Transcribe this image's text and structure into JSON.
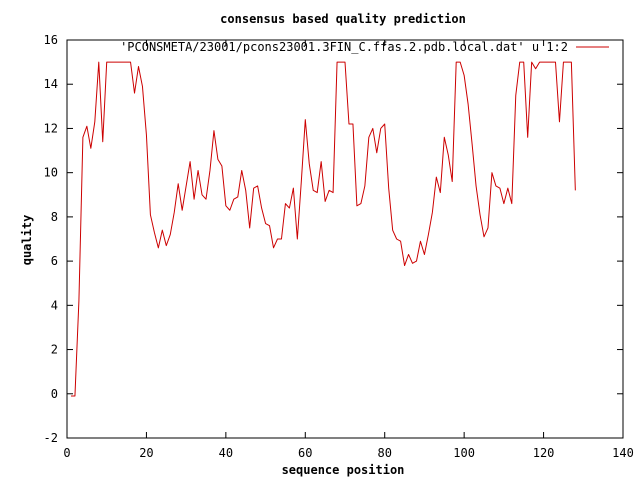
{
  "chart_data": {
    "type": "line",
    "title": "consensus based quality prediction",
    "xlabel": "sequence position",
    "ylabel": "quality",
    "xlim": [
      0,
      140
    ],
    "ylim": [
      -2,
      16
    ],
    "xticks": [
      0,
      20,
      40,
      60,
      80,
      100,
      120,
      140
    ],
    "yticks": [
      -2,
      0,
      2,
      4,
      6,
      8,
      10,
      12,
      14,
      16
    ],
    "grid": false,
    "legend": "top-right",
    "series": [
      {
        "name": "'PCONSMETA/23001/pcons23001.3FIN_C.ffas.2.pdb.local.dat' u 1:2",
        "color": "#cc0000",
        "x": [
          1,
          2,
          3,
          4,
          5,
          6,
          7,
          8,
          9,
          10,
          11,
          12,
          13,
          14,
          15,
          16,
          17,
          18,
          19,
          20,
          21,
          22,
          23,
          24,
          25,
          26,
          27,
          28,
          29,
          30,
          31,
          32,
          33,
          34,
          35,
          36,
          37,
          38,
          39,
          40,
          41,
          42,
          43,
          44,
          45,
          46,
          47,
          48,
          49,
          50,
          51,
          52,
          53,
          54,
          55,
          56,
          57,
          58,
          59,
          60,
          61,
          62,
          63,
          64,
          65,
          66,
          67,
          68,
          69,
          70,
          71,
          72,
          73,
          74,
          75,
          76,
          77,
          78,
          79,
          80,
          81,
          82,
          83,
          84,
          85,
          86,
          87,
          88,
          89,
          90,
          91,
          92,
          93,
          94,
          95,
          96,
          97,
          98,
          99,
          100,
          101,
          102,
          103,
          104,
          105,
          106,
          107,
          108,
          109,
          110,
          111,
          112,
          113,
          114,
          115,
          116,
          117,
          118,
          119,
          120,
          121,
          122,
          123,
          124,
          125,
          126,
          127,
          128
        ],
        "y": [
          -0.1,
          -0.1,
          4.2,
          11.6,
          12.1,
          11.1,
          12.3,
          15.0,
          11.4,
          15.0,
          15.0,
          15.0,
          15.0,
          15.0,
          15.0,
          15.0,
          13.6,
          14.8,
          13.9,
          11.7,
          8.1,
          7.3,
          6.6,
          7.4,
          6.7,
          7.2,
          8.2,
          9.5,
          8.3,
          9.4,
          10.5,
          8.8,
          10.1,
          9.0,
          8.8,
          10.1,
          11.9,
          10.6,
          10.3,
          8.5,
          8.3,
          8.8,
          8.9,
          10.1,
          9.2,
          7.5,
          9.3,
          9.4,
          8.4,
          7.7,
          7.6,
          6.6,
          7.0,
          7.0,
          8.6,
          8.4,
          9.3,
          7.0,
          9.6,
          12.4,
          10.4,
          9.2,
          9.1,
          10.5,
          8.7,
          9.2,
          9.1,
          15.0,
          15.0,
          15.0,
          12.2,
          12.2,
          8.5,
          8.6,
          9.4,
          11.6,
          12.0,
          10.9,
          12.0,
          12.2,
          9.3,
          7.4,
          7.0,
          6.9,
          5.8,
          6.3,
          5.9,
          6.0,
          6.9,
          6.3,
          7.2,
          8.2,
          9.8,
          9.1,
          11.6,
          10.8,
          9.6,
          15.0,
          15.0,
          14.4,
          13.1,
          11.3,
          9.4,
          8.1,
          7.1,
          7.5,
          10.0,
          9.4,
          9.3,
          8.6,
          9.3,
          8.6,
          13.5,
          15.0,
          15.0,
          11.6,
          15.0,
          14.7,
          15.0,
          15.0,
          15.0,
          15.0,
          15.0,
          12.3,
          15.0,
          15.0,
          15.0,
          9.2
        ]
      }
    ]
  }
}
